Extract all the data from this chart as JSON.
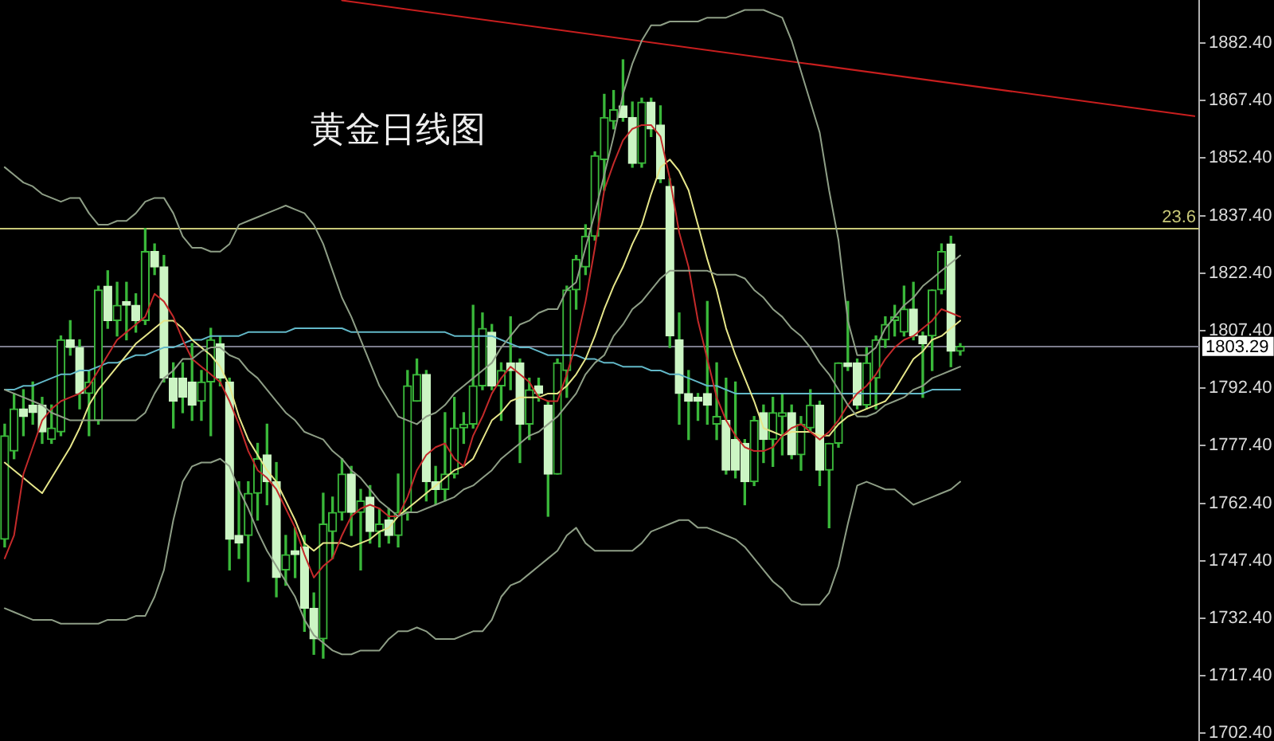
{
  "chart_data": {
    "type": "candlestick",
    "title": "黄金日线图",
    "categories": [
      null,
      null,
      null,
      null,
      null,
      null,
      null,
      null,
      null,
      null,
      null,
      null,
      null,
      null,
      null,
      null,
      null,
      null,
      null,
      null,
      null,
      null,
      null,
      null,
      null,
      null,
      null,
      null,
      null,
      null,
      null,
      null,
      null,
      null,
      null,
      null,
      null,
      null,
      null,
      null,
      null,
      null,
      null,
      null,
      null,
      null,
      null,
      null,
      null,
      null,
      null,
      null,
      null,
      null,
      null,
      null,
      null,
      null,
      null,
      null,
      null,
      null,
      null,
      null,
      null,
      null,
      null,
      null,
      null,
      null,
      null,
      null,
      null,
      null,
      null,
      null,
      null,
      null,
      null,
      null,
      null,
      null,
      null,
      null,
      null,
      null,
      null,
      null,
      null,
      null,
      null,
      null,
      null,
      null,
      null,
      null,
      null,
      null,
      null,
      null,
      null,
      null,
      null,
      null,
      null,
      null,
      null,
      null,
      null,
      null,
      null,
      null,
      null,
      null,
      null,
      null,
      null,
      null,
      null,
      null,
      null,
      null,
      null,
      null,
      null,
      null,
      null,
      null
    ],
    "color": "#3ab83a",
    "ohlc": [
      [
        1753,
        1783,
        1751,
        1780
      ],
      [
        1776,
        1791,
        1774,
        1787
      ],
      [
        1787,
        1792,
        1780,
        1785
      ],
      [
        1788,
        1794,
        1783,
        1786
      ],
      [
        1788,
        1790,
        1778,
        1781
      ],
      [
        1779,
        1788,
        1778,
        1782
      ],
      [
        1781,
        1806,
        1780,
        1805
      ],
      [
        1805,
        1810,
        1801,
        1803
      ],
      [
        1803,
        1805,
        1787,
        1791
      ],
      [
        1791,
        1797,
        1780,
        1794
      ],
      [
        1784,
        1819,
        1783,
        1818
      ],
      [
        1819,
        1823,
        1808,
        1810
      ],
      [
        1810,
        1820,
        1806,
        1814
      ],
      [
        1815,
        1820,
        1805,
        1814
      ],
      [
        1814,
        1817,
        1807,
        1810
      ],
      [
        1810,
        1834,
        1809,
        1828
      ],
      [
        1828,
        1830,
        1822,
        1824
      ],
      [
        1824,
        1827,
        1794,
        1795
      ],
      [
        1795,
        1799,
        1782,
        1789
      ],
      [
        1795,
        1799,
        1786,
        1790
      ],
      [
        1794,
        1804,
        1784,
        1788
      ],
      [
        1789,
        1797,
        1784,
        1794
      ],
      [
        1794,
        1808,
        1780,
        1805
      ],
      [
        1804,
        1806,
        1793,
        1795
      ],
      [
        1794,
        1795,
        1745,
        1753
      ],
      [
        1754,
        1768,
        1748,
        1752
      ],
      [
        1754,
        1768,
        1742,
        1765
      ],
      [
        1765,
        1778,
        1758,
        1774
      ],
      [
        1775,
        1783,
        1762,
        1768
      ],
      [
        1768,
        1773,
        1738,
        1743
      ],
      [
        1745,
        1754,
        1741,
        1749
      ],
      [
        1750,
        1756,
        1743,
        1749
      ],
      [
        1751,
        1754,
        1729,
        1735
      ],
      [
        1735,
        1739,
        1723,
        1727
      ],
      [
        1727,
        1765,
        1722,
        1757
      ],
      [
        1755,
        1764,
        1748,
        1760
      ],
      [
        1760,
        1774,
        1758,
        1770
      ],
      [
        1770,
        1772,
        1754,
        1760
      ],
      [
        1760,
        1766,
        1745,
        1763
      ],
      [
        1764,
        1767,
        1752,
        1755
      ],
      [
        1755,
        1761,
        1751,
        1757
      ],
      [
        1758,
        1761,
        1752,
        1754
      ],
      [
        1754,
        1770,
        1751,
        1760
      ],
      [
        1760,
        1797,
        1758,
        1793
      ],
      [
        1789,
        1800,
        1789,
        1796
      ],
      [
        1796,
        1797,
        1763,
        1768
      ],
      [
        1768,
        1772,
        1762,
        1766
      ],
      [
        1766,
        1786,
        1763,
        1770
      ],
      [
        1770,
        1790,
        1769,
        1782
      ],
      [
        1782,
        1786,
        1778,
        1783
      ],
      [
        1783,
        1814,
        1782,
        1793
      ],
      [
        1793,
        1812,
        1792,
        1808
      ],
      [
        1807,
        1809,
        1792,
        1793
      ],
      [
        1793,
        1799,
        1784,
        1797
      ],
      [
        1799,
        1811,
        1792,
        1797
      ],
      [
        1799,
        1800,
        1773,
        1783
      ],
      [
        1783,
        1795,
        1779,
        1792
      ],
      [
        1793,
        1795,
        1789,
        1791
      ],
      [
        1788,
        1789,
        1759,
        1770
      ],
      [
        1770,
        1800,
        1770,
        1799
      ],
      [
        1797,
        1819,
        1790,
        1818
      ],
      [
        1818,
        1827,
        1813,
        1826
      ],
      [
        1824,
        1835,
        1822,
        1832
      ],
      [
        1832,
        1854,
        1831,
        1853
      ],
      [
        1852,
        1869,
        1844,
        1863
      ],
      [
        1862,
        1870,
        1860,
        1865
      ],
      [
        1866,
        1878,
        1862,
        1863
      ],
      [
        1863,
        1867,
        1850,
        1851
      ],
      [
        1851,
        1868,
        1850,
        1867
      ],
      [
        1867,
        1868,
        1858,
        1860
      ],
      [
        1861,
        1866,
        1846,
        1847
      ],
      [
        1845,
        1847,
        1803,
        1806
      ],
      [
        1805,
        1812,
        1783,
        1791
      ],
      [
        1791,
        1797,
        1779,
        1789
      ],
      [
        1790,
        1791,
        1784,
        1789
      ],
      [
        1791,
        1815,
        1783,
        1788
      ],
      [
        1783,
        1799,
        1779,
        1785
      ],
      [
        1784,
        1795,
        1770,
        1771
      ],
      [
        1779,
        1794,
        1769,
        1771
      ],
      [
        1778,
        1779,
        1762,
        1768
      ],
      [
        1768,
        1785,
        1767,
        1784
      ],
      [
        1786,
        1788,
        1773,
        1779
      ],
      [
        1779,
        1790,
        1772,
        1786
      ],
      [
        1785,
        1791,
        1775,
        1786
      ],
      [
        1786,
        1788,
        1774,
        1775
      ],
      [
        1775,
        1785,
        1771,
        1783
      ],
      [
        1782,
        1792,
        1781,
        1788
      ],
      [
        1788,
        1789,
        1767,
        1771
      ],
      [
        1771,
        1778,
        1756,
        1778
      ],
      [
        1778,
        1799,
        1777,
        1799
      ],
      [
        1799,
        1815,
        1797,
        1798
      ],
      [
        1799,
        1800,
        1787,
        1788
      ],
      [
        1788,
        1803,
        1787,
        1799
      ],
      [
        1795,
        1806,
        1787,
        1805
      ],
      [
        1805,
        1811,
        1803,
        1809
      ],
      [
        1810,
        1814,
        1806,
        1811
      ],
      [
        1807,
        1819,
        1806,
        1813
      ],
      [
        1813,
        1820,
        1805,
        1806
      ],
      [
        1806,
        1807,
        1790,
        1804
      ],
      [
        1806,
        1818,
        1797,
        1818
      ],
      [
        1818,
        1830,
        1817,
        1828
      ],
      [
        1830,
        1832,
        1798,
        1802
      ],
      [
        1802,
        1804,
        1801,
        1803.29
      ],
      null,
      null,
      null,
      null,
      null,
      null,
      null,
      null,
      null,
      null,
      null,
      null,
      null,
      null,
      null,
      null,
      null,
      null,
      null,
      null,
      null,
      null,
      null,
      null,
      null
    ],
    "colors": [
      "#3ab83a",
      "#3ab83a",
      "#ccf5c4",
      "#ccf5c4",
      "#ccf5c4",
      "#3ab83a",
      "#3ab83a",
      "#ccf5c4",
      "#ccf5c4",
      "#3ab83a",
      "#3ab83a",
      "#ccf5c4",
      "#3ab83a",
      "#ccf5c4",
      "#ccf5c4",
      "#3ab83a",
      "#ccf5c4",
      "#ccf5c4",
      "#ccf5c4",
      "#ccf5c4",
      "#ccf5c4",
      "#3ab83a",
      "#3ab83a",
      "#ccf5c4",
      "#ccf5c4",
      "#ccf5c4",
      "#3ab83a",
      "#3ab83a",
      "#ccf5c4",
      "#ccf5c4",
      "#3ab83a",
      "#ccf5c4",
      "#ccf5c4",
      "#ccf5c4",
      "#3ab83a",
      "#3ab83a",
      "#3ab83a",
      "#ccf5c4",
      "#3ab83a",
      "#ccf5c4",
      "#3ab83a",
      "#ccf5c4",
      "#3ab83a",
      "#3ab83a",
      "#3ab83a",
      "#ccf5c4",
      "#ccf5c4",
      "#3ab83a",
      "#3ab83a",
      "#3ab83a",
      "#3ab83a",
      "#3ab83a",
      "#ccf5c4",
      "#3ab83a",
      "#ccf5c4",
      "#ccf5c4",
      "#3ab83a",
      "#ccf5c4",
      "#ccf5c4",
      "#3ab83a",
      "#3ab83a",
      "#3ab83a",
      "#3ab83a",
      "#3ab83a",
      "#3ab83a",
      "#3ab83a",
      "#ccf5c4",
      "#ccf5c4",
      "#3ab83a",
      "#ccf5c4",
      "#ccf5c4",
      "#ccf5c4",
      "#ccf5c4",
      "#ccf5c4",
      "#ccf5c4",
      "#ccf5c4",
      "#3ab83a",
      "#ccf5c4",
      "#ccf5c4",
      "#ccf5c4",
      "#3ab83a",
      "#ccf5c4",
      "#3ab83a",
      "#3ab83a",
      "#ccf5c4",
      "#3ab83a",
      "#3ab83a",
      "#ccf5c4",
      "#3ab83a",
      "#3ab83a",
      "#ccf5c4",
      "#ccf5c4",
      "#3ab83a",
      "#3ab83a",
      "#3ab83a",
      "#3ab83a",
      "#3ab83a",
      "#ccf5c4",
      "#ccf5c4",
      "#3ab83a",
      "#3ab83a",
      "#ccf5c4",
      "#3ab83a",
      null,
      null,
      null,
      null,
      null,
      null,
      null,
      null,
      null,
      null,
      null,
      null,
      null,
      null,
      null,
      null,
      null,
      null,
      null,
      null,
      null,
      null,
      null,
      null,
      null
    ],
    "series": [
      {
        "type": "line",
        "color": "#8e9e86",
        "values": [
          1850,
          1848,
          1846,
          1845,
          1843,
          1842,
          1841,
          1842,
          1842,
          1838,
          1835,
          1835,
          1836,
          1836,
          1838,
          1841,
          1842,
          1842,
          1838,
          1832,
          1829,
          1829,
          1828,
          1828,
          1830,
          1835,
          1836,
          1837,
          1838,
          1839,
          1840,
          1839,
          1838,
          1835,
          1830,
          1823,
          1816,
          1811,
          1805,
          1799,
          1793,
          1789,
          1785,
          1784,
          1783,
          1785,
          1786,
          1788,
          1791,
          1793,
          1795,
          1797,
          1799,
          1803,
          1806,
          1809,
          1810,
          1812,
          1813,
          1813,
          1818,
          1820,
          1829,
          1838,
          1848,
          1858,
          1869,
          1877,
          1883,
          1887,
          1887,
          1888,
          1888,
          1888,
          1888,
          1889,
          1889,
          1889,
          1890,
          1891,
          1891,
          1891,
          1890,
          1889,
          1883,
          1875,
          1867,
          1859,
          1844,
          1831,
          1810,
          1801,
          1801,
          1803,
          1808,
          1811,
          1814,
          1816,
          1819,
          1821,
          1823,
          1825,
          1827,
          null,
          null,
          null,
          null,
          null,
          null,
          null,
          null,
          null,
          null,
          null,
          null,
          null,
          null,
          null,
          null,
          null,
          null,
          null,
          null,
          null,
          null,
          null,
          null,
          null
        ]
      },
      {
        "type": "line",
        "color": "#8e9e86",
        "values": [
          1792,
          1791,
          1790,
          1789,
          1788,
          1786,
          1785,
          1784,
          1784,
          1784,
          1784,
          1784,
          1784,
          1784,
          1784,
          1786,
          1791,
          1795,
          1797,
          1800,
          1800,
          1802,
          1803,
          1803,
          1801,
          1800,
          1797,
          1795,
          1792,
          1789,
          1786,
          1784,
          1781,
          1780,
          1779,
          1776,
          1774,
          1771,
          1769,
          1766,
          1763,
          1761,
          1759,
          1760,
          1760,
          1761,
          1762,
          1763,
          1764,
          1766,
          1767,
          1769,
          1771,
          1774,
          1776,
          1778,
          1780,
          1781,
          1783,
          1785,
          1788,
          1791,
          1796,
          1799,
          1801,
          1806,
          1809,
          1813,
          1815,
          1818,
          1821,
          1823,
          1823,
          1823,
          1823,
          1823,
          1822,
          1822,
          1822,
          1821,
          1818,
          1816,
          1813,
          1811,
          1808,
          1806,
          1803,
          1799,
          1796,
          1792,
          1788,
          1785,
          1785,
          1786,
          1788,
          1789,
          1790,
          1792,
          1793,
          1795,
          1796,
          1797,
          1798,
          null,
          null,
          null,
          null,
          null,
          null,
          null,
          null,
          null,
          null,
          null,
          null,
          null,
          null,
          null,
          null,
          null,
          null,
          null,
          null,
          null,
          null,
          null,
          null,
          null
        ]
      },
      {
        "type": "line",
        "color": "#8e9e86",
        "values": [
          1735,
          1734,
          1733,
          1732,
          1732,
          1732,
          1731,
          1731,
          1731,
          1731,
          1731,
          1732,
          1732,
          1732,
          1733,
          1733,
          1738,
          1745,
          1758,
          1768,
          1772,
          1773,
          1773,
          1774,
          1772,
          1766,
          1761,
          1755,
          1750,
          1746,
          1742,
          1738,
          1732,
          1728,
          1726,
          1724,
          1723,
          1723,
          1724,
          1724,
          1724,
          1727,
          1729,
          1729,
          1730,
          1729,
          1727,
          1727,
          1727,
          1728,
          1729,
          1729,
          1732,
          1738,
          1741,
          1742,
          1744,
          1746,
          1748,
          1750,
          1754,
          1756,
          1752,
          1750,
          1750,
          1750,
          1750,
          1750,
          1752,
          1755,
          1756,
          1757,
          1758,
          1758,
          1756,
          1756,
          1755,
          1754,
          1753,
          1751,
          1748,
          1745,
          1742,
          1740,
          1737,
          1736,
          1736,
          1736,
          1739,
          1746,
          1757,
          1767,
          1768,
          1767,
          1766,
          1766,
          1764,
          1762,
          1763,
          1764,
          1765,
          1766,
          1768,
          null,
          null,
          null,
          null,
          null,
          null,
          null,
          null,
          null,
          null,
          null,
          null,
          null,
          null,
          null,
          null,
          null,
          null,
          null,
          null,
          null,
          null,
          null,
          null,
          null
        ]
      },
      {
        "type": "line",
        "color": "#c42a2a",
        "values": [
          1748,
          1754,
          1770,
          1777,
          1784,
          1787,
          1789,
          1790,
          1791,
          1793,
          1797,
          1801,
          1805,
          1807,
          1809,
          1811,
          1817,
          1815,
          1811,
          1805,
          1800,
          1798,
          1796,
          1794,
          1789,
          1783,
          1776,
          1771,
          1769,
          1766,
          1761,
          1756,
          1749,
          1743,
          1746,
          1748,
          1754,
          1759,
          1761,
          1762,
          1761,
          1759,
          1759,
          1764,
          1771,
          1775,
          1777,
          1778,
          1774,
          1772,
          1780,
          1785,
          1791,
          1795,
          1798,
          1796,
          1794,
          1790,
          1789,
          1789,
          1796,
          1804,
          1815,
          1829,
          1844,
          1851,
          1857,
          1860,
          1861,
          1861,
          1858,
          1847,
          1833,
          1824,
          1810,
          1800,
          1790,
          1784,
          1780,
          1777,
          1776,
          1776,
          1777,
          1780,
          1782,
          1783,
          1781,
          1779,
          1781,
          1784,
          1788,
          1791,
          1793,
          1796,
          1800,
          1803,
          1805,
          1806,
          1808,
          1810,
          1813,
          1812,
          1811,
          null,
          null,
          null,
          null,
          null,
          null,
          null,
          null,
          null,
          null,
          null,
          null,
          null,
          null,
          null,
          null,
          null,
          null,
          null,
          null,
          null,
          null,
          null,
          null,
          null
        ]
      },
      {
        "type": "line",
        "color": "#e6e68a",
        "values": [
          1773,
          1771,
          1769,
          1767,
          1765,
          1769,
          1773,
          1777,
          1782,
          1788,
          1792,
          1795,
          1798,
          1801,
          1804,
          1806,
          1808,
          1810,
          1810,
          1808,
          1805,
          1803,
          1801,
          1798,
          1793,
          1785,
          1779,
          1775,
          1771,
          1768,
          1763,
          1758,
          1752,
          1750,
          1752,
          1752,
          1752,
          1751,
          1752,
          1753,
          1755,
          1756,
          1759,
          1761,
          1763,
          1765,
          1767,
          1769,
          1771,
          1772,
          1774,
          1779,
          1784,
          1786,
          1789,
          1790,
          1790,
          1790,
          1791,
          1791,
          1793,
          1796,
          1800,
          1806,
          1813,
          1819,
          1824,
          1830,
          1835,
          1843,
          1850,
          1852,
          1849,
          1844,
          1835,
          1826,
          1818,
          1808,
          1801,
          1795,
          1789,
          1782,
          1781,
          1780,
          1781,
          1781,
          1781,
          1780,
          1780,
          1783,
          1785,
          1786,
          1787,
          1788,
          1789,
          1792,
          1796,
          1800,
          1802,
          1805,
          1806,
          1808,
          1810,
          null,
          null,
          null,
          null,
          null,
          null,
          null,
          null,
          null,
          null,
          null,
          null,
          null,
          null,
          null,
          null,
          null,
          null,
          null,
          null,
          null,
          null,
          null,
          null,
          null
        ]
      },
      {
        "type": "line",
        "color": "#62b8c8",
        "values": [
          1792,
          1792,
          1793,
          1793,
          1794,
          1795,
          1796,
          1796,
          1797,
          1797,
          1798,
          1799,
          1799,
          1800,
          1801,
          1801,
          1802,
          1803,
          1803,
          1804,
          1805,
          1805,
          1806,
          1806,
          1806,
          1806,
          1807,
          1807,
          1807,
          1807,
          1807,
          1808,
          1808,
          1808,
          1808,
          1808,
          1808,
          1807,
          1807,
          1807,
          1807,
          1807,
          1807,
          1807,
          1807,
          1807,
          1807,
          1807,
          1806,
          1806,
          1806,
          1806,
          1806,
          1805,
          1804,
          1803,
          1803,
          1802,
          1801,
          1801,
          1801,
          1801,
          1800,
          1800,
          1799,
          1799,
          1798,
          1798,
          1798,
          1797,
          1797,
          1796,
          1796,
          1795,
          1794,
          1793,
          1793,
          1792,
          1791,
          1791,
          1791,
          1791,
          1791,
          1791,
          1791,
          1791,
          1791,
          1791,
          1791,
          1791,
          1791,
          1791,
          1791,
          1791,
          1791,
          1791,
          1791,
          1791,
          1791,
          1792,
          1792,
          1792,
          1792,
          null,
          null,
          null,
          null,
          null,
          null,
          null,
          null,
          null,
          null,
          null,
          null,
          null,
          null,
          null,
          null,
          null,
          null,
          null,
          null,
          null,
          null,
          null,
          null,
          null
        ]
      },
      {
        "type": "line",
        "color": "#c81e1e",
        "values": [
          null,
          null,
          null,
          null,
          null,
          null,
          null,
          null,
          null,
          null,
          null,
          null,
          null,
          null,
          null,
          null,
          null,
          null,
          null,
          null,
          null,
          null,
          null,
          null,
          null,
          null,
          null,
          null,
          null,
          null,
          null,
          null,
          null,
          null,
          null,
          null,
          1893.5,
          null,
          null,
          null,
          null,
          null,
          null,
          null,
          null,
          null,
          null,
          null,
          null,
          null,
          null,
          null,
          null,
          null,
          null,
          null,
          null,
          null,
          null,
          null,
          null,
          null,
          null,
          null,
          null,
          null,
          null,
          null,
          null,
          null,
          null,
          null,
          null,
          null,
          null,
          null,
          null,
          null,
          null,
          null,
          null,
          null,
          null,
          null,
          null,
          null,
          null,
          null,
          null,
          null,
          null,
          null,
          null,
          null,
          null,
          null,
          null,
          null,
          null,
          null,
          null,
          null,
          null,
          null,
          null,
          null,
          null,
          null,
          null,
          null,
          null,
          null,
          null,
          null,
          null,
          null,
          null,
          null,
          null,
          null,
          null,
          null,
          null,
          null,
          null,
          null,
          null,
          1863.3
        ]
      }
    ],
    "ylim": [
      1700.4,
      1893.6
    ],
    "yticks": [
      {
        "value": 1702.4,
        "label": "1702.40"
      },
      {
        "value": 1717.4,
        "label": "1717.40"
      },
      {
        "value": 1732.4,
        "label": "1732.40"
      },
      {
        "value": 1747.4,
        "label": "1747.40"
      },
      {
        "value": 1762.4,
        "label": "1762.40"
      },
      {
        "value": 1777.4,
        "label": "1777.40"
      },
      {
        "value": 1792.4,
        "label": "1792.40"
      },
      {
        "value": 1807.4,
        "label": "1807.40"
      },
      {
        "value": 1822.4,
        "label": "1822.40"
      },
      {
        "value": 1837.4,
        "label": "1837.40"
      },
      {
        "value": 1852.4,
        "label": "1852.40"
      },
      {
        "value": 1867.4,
        "label": "1867.40"
      },
      {
        "value": 1882.4,
        "label": "1882.40"
      }
    ],
    "ref_lines": [
      {
        "axis": "y",
        "value": 1834.1,
        "color": "#c8c878"
      },
      {
        "axis": "y",
        "value": 1803.29,
        "label": "1803.29",
        "color": "#7c7c8c"
      }
    ],
    "annotations": [
      {
        "text": "23.6",
        "y": 1834.1
      }
    ],
    "tick_labels": "y",
    "legend": false,
    "grid": false,
    "marker": "none"
  }
}
